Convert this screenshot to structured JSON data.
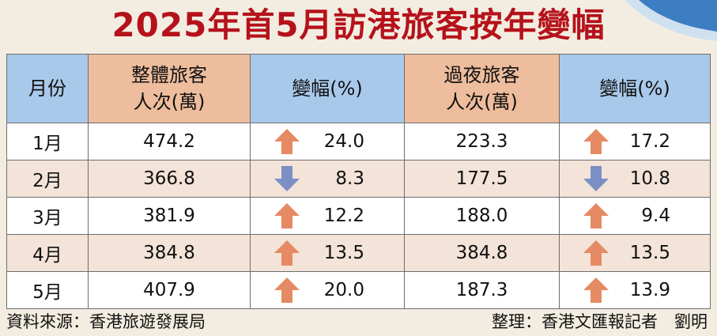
{
  "title": "2025年首5月訪港旅客按年變幅",
  "headers": {
    "month": "月份",
    "total_line1": "整體旅客",
    "total_line2": "人次(萬)",
    "total_change": "變幅(%)",
    "overnight_line1": "過夜旅客",
    "overnight_line2": "人次(萬)",
    "overnight_change": "變幅(%)"
  },
  "colors": {
    "title": "#b5121b",
    "header_blue": "#a9c9ea",
    "header_orange": "#eebd9d",
    "arrow_up": "#e58a63",
    "arrow_down": "#7b8fc4",
    "row_alt": "#f3e3d8"
  },
  "chart_data": {
    "type": "table",
    "title": "2025年首5月訪港旅客按年變幅",
    "columns": [
      "月份",
      "整體旅客人次(萬)",
      "變幅(%)",
      "過夜旅客人次(萬)",
      "變幅(%)"
    ],
    "rows": [
      {
        "month": "1月",
        "total": "474.2",
        "total_dir": "up",
        "total_change": "24.0",
        "overnight": "223.3",
        "overnight_dir": "up",
        "overnight_change": "17.2"
      },
      {
        "month": "2月",
        "total": "366.8",
        "total_dir": "down",
        "total_change": "8.3",
        "overnight": "177.5",
        "overnight_dir": "down",
        "overnight_change": "10.8"
      },
      {
        "month": "3月",
        "total": "381.9",
        "total_dir": "up",
        "total_change": "12.2",
        "overnight": "188.0",
        "overnight_dir": "up",
        "overnight_change": "9.4"
      },
      {
        "month": "4月",
        "total": "384.8",
        "total_dir": "up",
        "total_change": "13.5",
        "overnight": "384.8",
        "overnight_dir": "up",
        "overnight_change": "13.5"
      },
      {
        "month": "5月",
        "total": "407.9",
        "total_dir": "up",
        "total_change": "20.0",
        "overnight": "187.3",
        "overnight_dir": "up",
        "overnight_change": "13.9"
      }
    ]
  },
  "footer": {
    "source": "資料來源：香港旅遊發展局",
    "credit": "整理：香港文匯報記者　劉明"
  }
}
